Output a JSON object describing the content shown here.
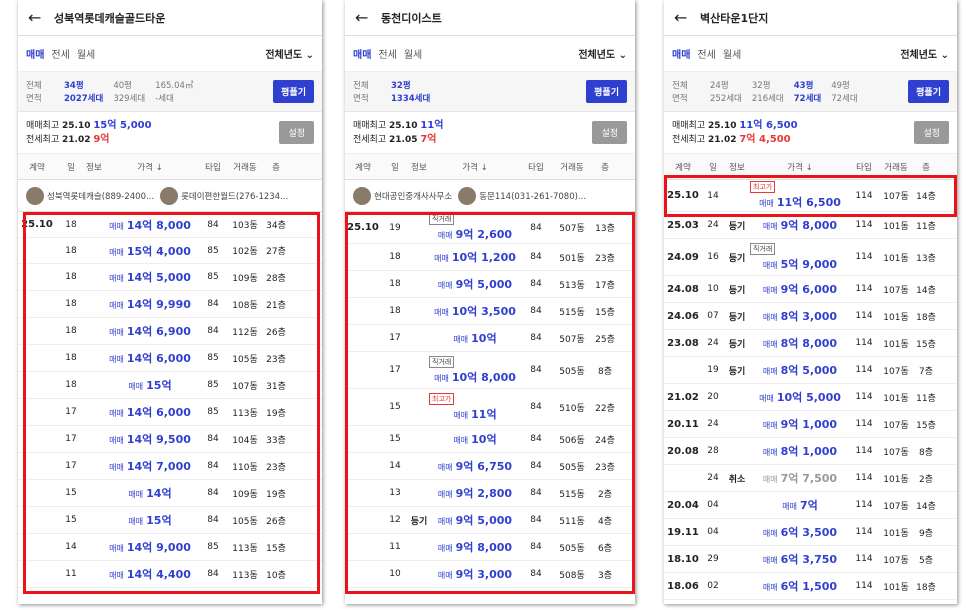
{
  "panels": [
    {
      "title": "성북역롯데캐슬골드타운",
      "tabs": [
        "매매",
        "전세",
        "월세"
      ],
      "year_filter": "전체년도",
      "sizes_label": [
        "전체",
        "면적"
      ],
      "sizes": [
        {
          "py": "34평",
          "units": "2027세대",
          "on": true
        },
        {
          "py": "40평",
          "units": "329세대",
          "on": false
        },
        {
          "py": "165.04㎡",
          "units": "-세대",
          "on": false
        }
      ],
      "price_btn": "평플기",
      "max_sale_label": "매매최고",
      "max_sale_date": "25.10",
      "max_sale_val": "15억 5,000",
      "max_rent_label": "전세최고",
      "max_rent_date": "21.02",
      "max_rent_val": "9억",
      "set_btn": "설정",
      "cols": [
        "계약",
        "일",
        "정보",
        "가격 ↓",
        "타입",
        "거래동",
        "층"
      ],
      "brokers": [
        "성북역롯데캐슬(889-2400...",
        "롯데이편한월드(276-1234..."
      ],
      "rows": [
        {
          "m": "25.10",
          "d": "18",
          "i": "",
          "t": "매매",
          "a": "14억 8,000",
          "ty": "84",
          "dong": "103동",
          "fl": "34층"
        },
        {
          "m": "",
          "d": "18",
          "i": "",
          "t": "매매",
          "a": "15억 4,000",
          "ty": "85",
          "dong": "102동",
          "fl": "27층"
        },
        {
          "m": "",
          "d": "18",
          "i": "",
          "t": "매매",
          "a": "14억 5,000",
          "ty": "85",
          "dong": "109동",
          "fl": "28층"
        },
        {
          "m": "",
          "d": "18",
          "i": "",
          "t": "매매",
          "a": "14억 9,990",
          "ty": "84",
          "dong": "108동",
          "fl": "21층"
        },
        {
          "m": "",
          "d": "18",
          "i": "",
          "t": "매매",
          "a": "14억 6,900",
          "ty": "84",
          "dong": "112동",
          "fl": "26층"
        },
        {
          "m": "",
          "d": "18",
          "i": "",
          "t": "매매",
          "a": "14억 6,000",
          "ty": "85",
          "dong": "105동",
          "fl": "23층"
        },
        {
          "m": "",
          "d": "18",
          "i": "",
          "t": "매매",
          "a": "15억",
          "ty": "85",
          "dong": "107동",
          "fl": "31층"
        },
        {
          "m": "",
          "d": "17",
          "i": "",
          "t": "매매",
          "a": "14억 6,000",
          "ty": "85",
          "dong": "113동",
          "fl": "19층"
        },
        {
          "m": "",
          "d": "17",
          "i": "",
          "t": "매매",
          "a": "14억 9,500",
          "ty": "84",
          "dong": "104동",
          "fl": "33층"
        },
        {
          "m": "",
          "d": "17",
          "i": "",
          "t": "매매",
          "a": "14억 7,000",
          "ty": "84",
          "dong": "110동",
          "fl": "23층"
        },
        {
          "m": "",
          "d": "15",
          "i": "",
          "t": "매매",
          "a": "14억",
          "ty": "84",
          "dong": "109동",
          "fl": "19층"
        },
        {
          "m": "",
          "d": "15",
          "i": "",
          "t": "매매",
          "a": "15억",
          "ty": "84",
          "dong": "105동",
          "fl": "26층"
        },
        {
          "m": "",
          "d": "14",
          "i": "",
          "t": "매매",
          "a": "14억 9,000",
          "ty": "85",
          "dong": "113동",
          "fl": "15층"
        },
        {
          "m": "",
          "d": "11",
          "i": "",
          "t": "매매",
          "a": "14억 4,400",
          "ty": "84",
          "dong": "113동",
          "fl": "10층"
        }
      ]
    },
    {
      "title": "동천디이스트",
      "tabs": [
        "매매",
        "전세",
        "월세"
      ],
      "year_filter": "전체년도",
      "sizes_label": [
        "전체",
        "면적"
      ],
      "sizes": [
        {
          "py": "32평",
          "units": "1334세대",
          "on": true
        }
      ],
      "price_btn": "평플기",
      "max_sale_label": "매매최고",
      "max_sale_date": "25.10",
      "max_sale_val": "11억",
      "max_rent_label": "전세최고",
      "max_rent_date": "21.05",
      "max_rent_val": "7억",
      "set_btn": "설정",
      "cols": [
        "계약",
        "일",
        "정보",
        "가격 ↓",
        "타입",
        "거래동",
        "층"
      ],
      "brokers": [
        "현대공인중개사사무소",
        "동문114(031-261-7080)..."
      ],
      "rows": [
        {
          "m": "25.10",
          "d": "19",
          "i": "",
          "b": "직거래",
          "t": "매매",
          "a": "9억 2,600",
          "ty": "84",
          "dong": "507동",
          "fl": "13층"
        },
        {
          "m": "",
          "d": "18",
          "i": "",
          "t": "매매",
          "a": "10억 1,200",
          "ty": "84",
          "dong": "501동",
          "fl": "23층"
        },
        {
          "m": "",
          "d": "18",
          "i": "",
          "t": "매매",
          "a": "9억 5,000",
          "ty": "84",
          "dong": "513동",
          "fl": "17층"
        },
        {
          "m": "",
          "d": "18",
          "i": "",
          "t": "매매",
          "a": "10억 3,500",
          "ty": "84",
          "dong": "515동",
          "fl": "15층"
        },
        {
          "m": "",
          "d": "17",
          "i": "",
          "t": "매매",
          "a": "10억",
          "ty": "84",
          "dong": "507동",
          "fl": "25층"
        },
        {
          "m": "",
          "d": "17",
          "i": "",
          "b": "직거래",
          "t": "매매",
          "a": "10억 8,000",
          "ty": "84",
          "dong": "505동",
          "fl": "8층"
        },
        {
          "m": "",
          "d": "15",
          "i": "",
          "b": "최고가",
          "t": "매매",
          "a": "11억",
          "ty": "84",
          "dong": "510동",
          "fl": "22층"
        },
        {
          "m": "",
          "d": "15",
          "i": "",
          "t": "매매",
          "a": "10억",
          "ty": "84",
          "dong": "506동",
          "fl": "24층"
        },
        {
          "m": "",
          "d": "14",
          "i": "",
          "t": "매매",
          "a": "9억 6,750",
          "ty": "84",
          "dong": "505동",
          "fl": "23층"
        },
        {
          "m": "",
          "d": "13",
          "i": "",
          "t": "매매",
          "a": "9억 2,800",
          "ty": "84",
          "dong": "515동",
          "fl": "2층"
        },
        {
          "m": "",
          "d": "12",
          "i": "등기",
          "t": "매매",
          "a": "9억 5,000",
          "ty": "84",
          "dong": "511동",
          "fl": "4층"
        },
        {
          "m": "",
          "d": "11",
          "i": "",
          "t": "매매",
          "a": "9억 8,000",
          "ty": "84",
          "dong": "505동",
          "fl": "6층"
        },
        {
          "m": "",
          "d": "10",
          "i": "",
          "t": "매매",
          "a": "9억 3,000",
          "ty": "84",
          "dong": "508동",
          "fl": "3층"
        }
      ]
    },
    {
      "title": "벽산타운1단지",
      "tabs": [
        "매매",
        "전세",
        "월세"
      ],
      "year_filter": "전체년도",
      "sizes_label": [
        "전체",
        "면적"
      ],
      "sizes": [
        {
          "py": "24평",
          "units": "252세대",
          "on": false
        },
        {
          "py": "32평",
          "units": "216세대",
          "on": false
        },
        {
          "py": "43평",
          "units": "72세대",
          "on": true
        },
        {
          "py": "49평",
          "units": "72세대",
          "on": false
        }
      ],
      "price_btn": "평플기",
      "max_sale_label": "매매최고",
      "max_sale_date": "25.10",
      "max_sale_val": "11억 6,500",
      "max_rent_label": "전세최고",
      "max_rent_date": "21.02",
      "max_rent_val": "7억 4,500",
      "set_btn": "설정",
      "cols": [
        "계약",
        "일",
        "정보",
        "가격 ↓",
        "타입",
        "거래동",
        "층"
      ],
      "rows": [
        {
          "m": "25.10",
          "d": "14",
          "i": "",
          "b": "최고가",
          "t": "매매",
          "a": "11억 6,500",
          "ty": "114",
          "dong": "107동",
          "fl": "14층"
        },
        {
          "m": "25.03",
          "d": "24",
          "i": "등기",
          "t": "매매",
          "a": "9억 8,000",
          "ty": "114",
          "dong": "101동",
          "fl": "11층"
        },
        {
          "m": "24.09",
          "d": "16",
          "i": "등기",
          "b": "직거래",
          "t": "매매",
          "a": "5억 9,000",
          "ty": "114",
          "dong": "101동",
          "fl": "13층"
        },
        {
          "m": "24.08",
          "d": "10",
          "i": "등기",
          "t": "매매",
          "a": "9억 6,000",
          "ty": "114",
          "dong": "107동",
          "fl": "14층"
        },
        {
          "m": "24.06",
          "d": "07",
          "i": "등기",
          "t": "매매",
          "a": "8억 3,000",
          "ty": "114",
          "dong": "101동",
          "fl": "18층"
        },
        {
          "m": "23.08",
          "d": "24",
          "i": "등기",
          "t": "매매",
          "a": "8억 8,000",
          "ty": "114",
          "dong": "101동",
          "fl": "15층"
        },
        {
          "m": "",
          "d": "19",
          "i": "등기",
          "t": "매매",
          "a": "8억 5,000",
          "ty": "114",
          "dong": "107동",
          "fl": "7층"
        },
        {
          "m": "21.02",
          "d": "20",
          "i": "",
          "t": "매매",
          "a": "10억 5,000",
          "ty": "114",
          "dong": "101동",
          "fl": "11층"
        },
        {
          "m": "20.11",
          "d": "24",
          "i": "",
          "t": "매매",
          "a": "9억 1,000",
          "ty": "114",
          "dong": "107동",
          "fl": "15층"
        },
        {
          "m": "20.08",
          "d": "28",
          "i": "",
          "t": "매매",
          "a": "8억 1,000",
          "ty": "114",
          "dong": "107동",
          "fl": "8층"
        },
        {
          "m": "",
          "d": "24",
          "i": "취소",
          "t": "매매",
          "a": "7억 7,500",
          "ty": "114",
          "dong": "101동",
          "fl": "2층",
          "x": true
        },
        {
          "m": "20.04",
          "d": "04",
          "i": "",
          "t": "매매",
          "a": "7억",
          "ty": "114",
          "dong": "107동",
          "fl": "14층"
        },
        {
          "m": "19.11",
          "d": "04",
          "i": "",
          "t": "매매",
          "a": "6억 3,500",
          "ty": "114",
          "dong": "101동",
          "fl": "9층"
        },
        {
          "m": "18.10",
          "d": "29",
          "i": "",
          "t": "매매",
          "a": "6억 3,750",
          "ty": "114",
          "dong": "107동",
          "fl": "5층"
        },
        {
          "m": "18.06",
          "d": "02",
          "i": "",
          "t": "매매",
          "a": "6억 1,500",
          "ty": "114",
          "dong": "101동",
          "fl": "18층"
        }
      ]
    }
  ]
}
